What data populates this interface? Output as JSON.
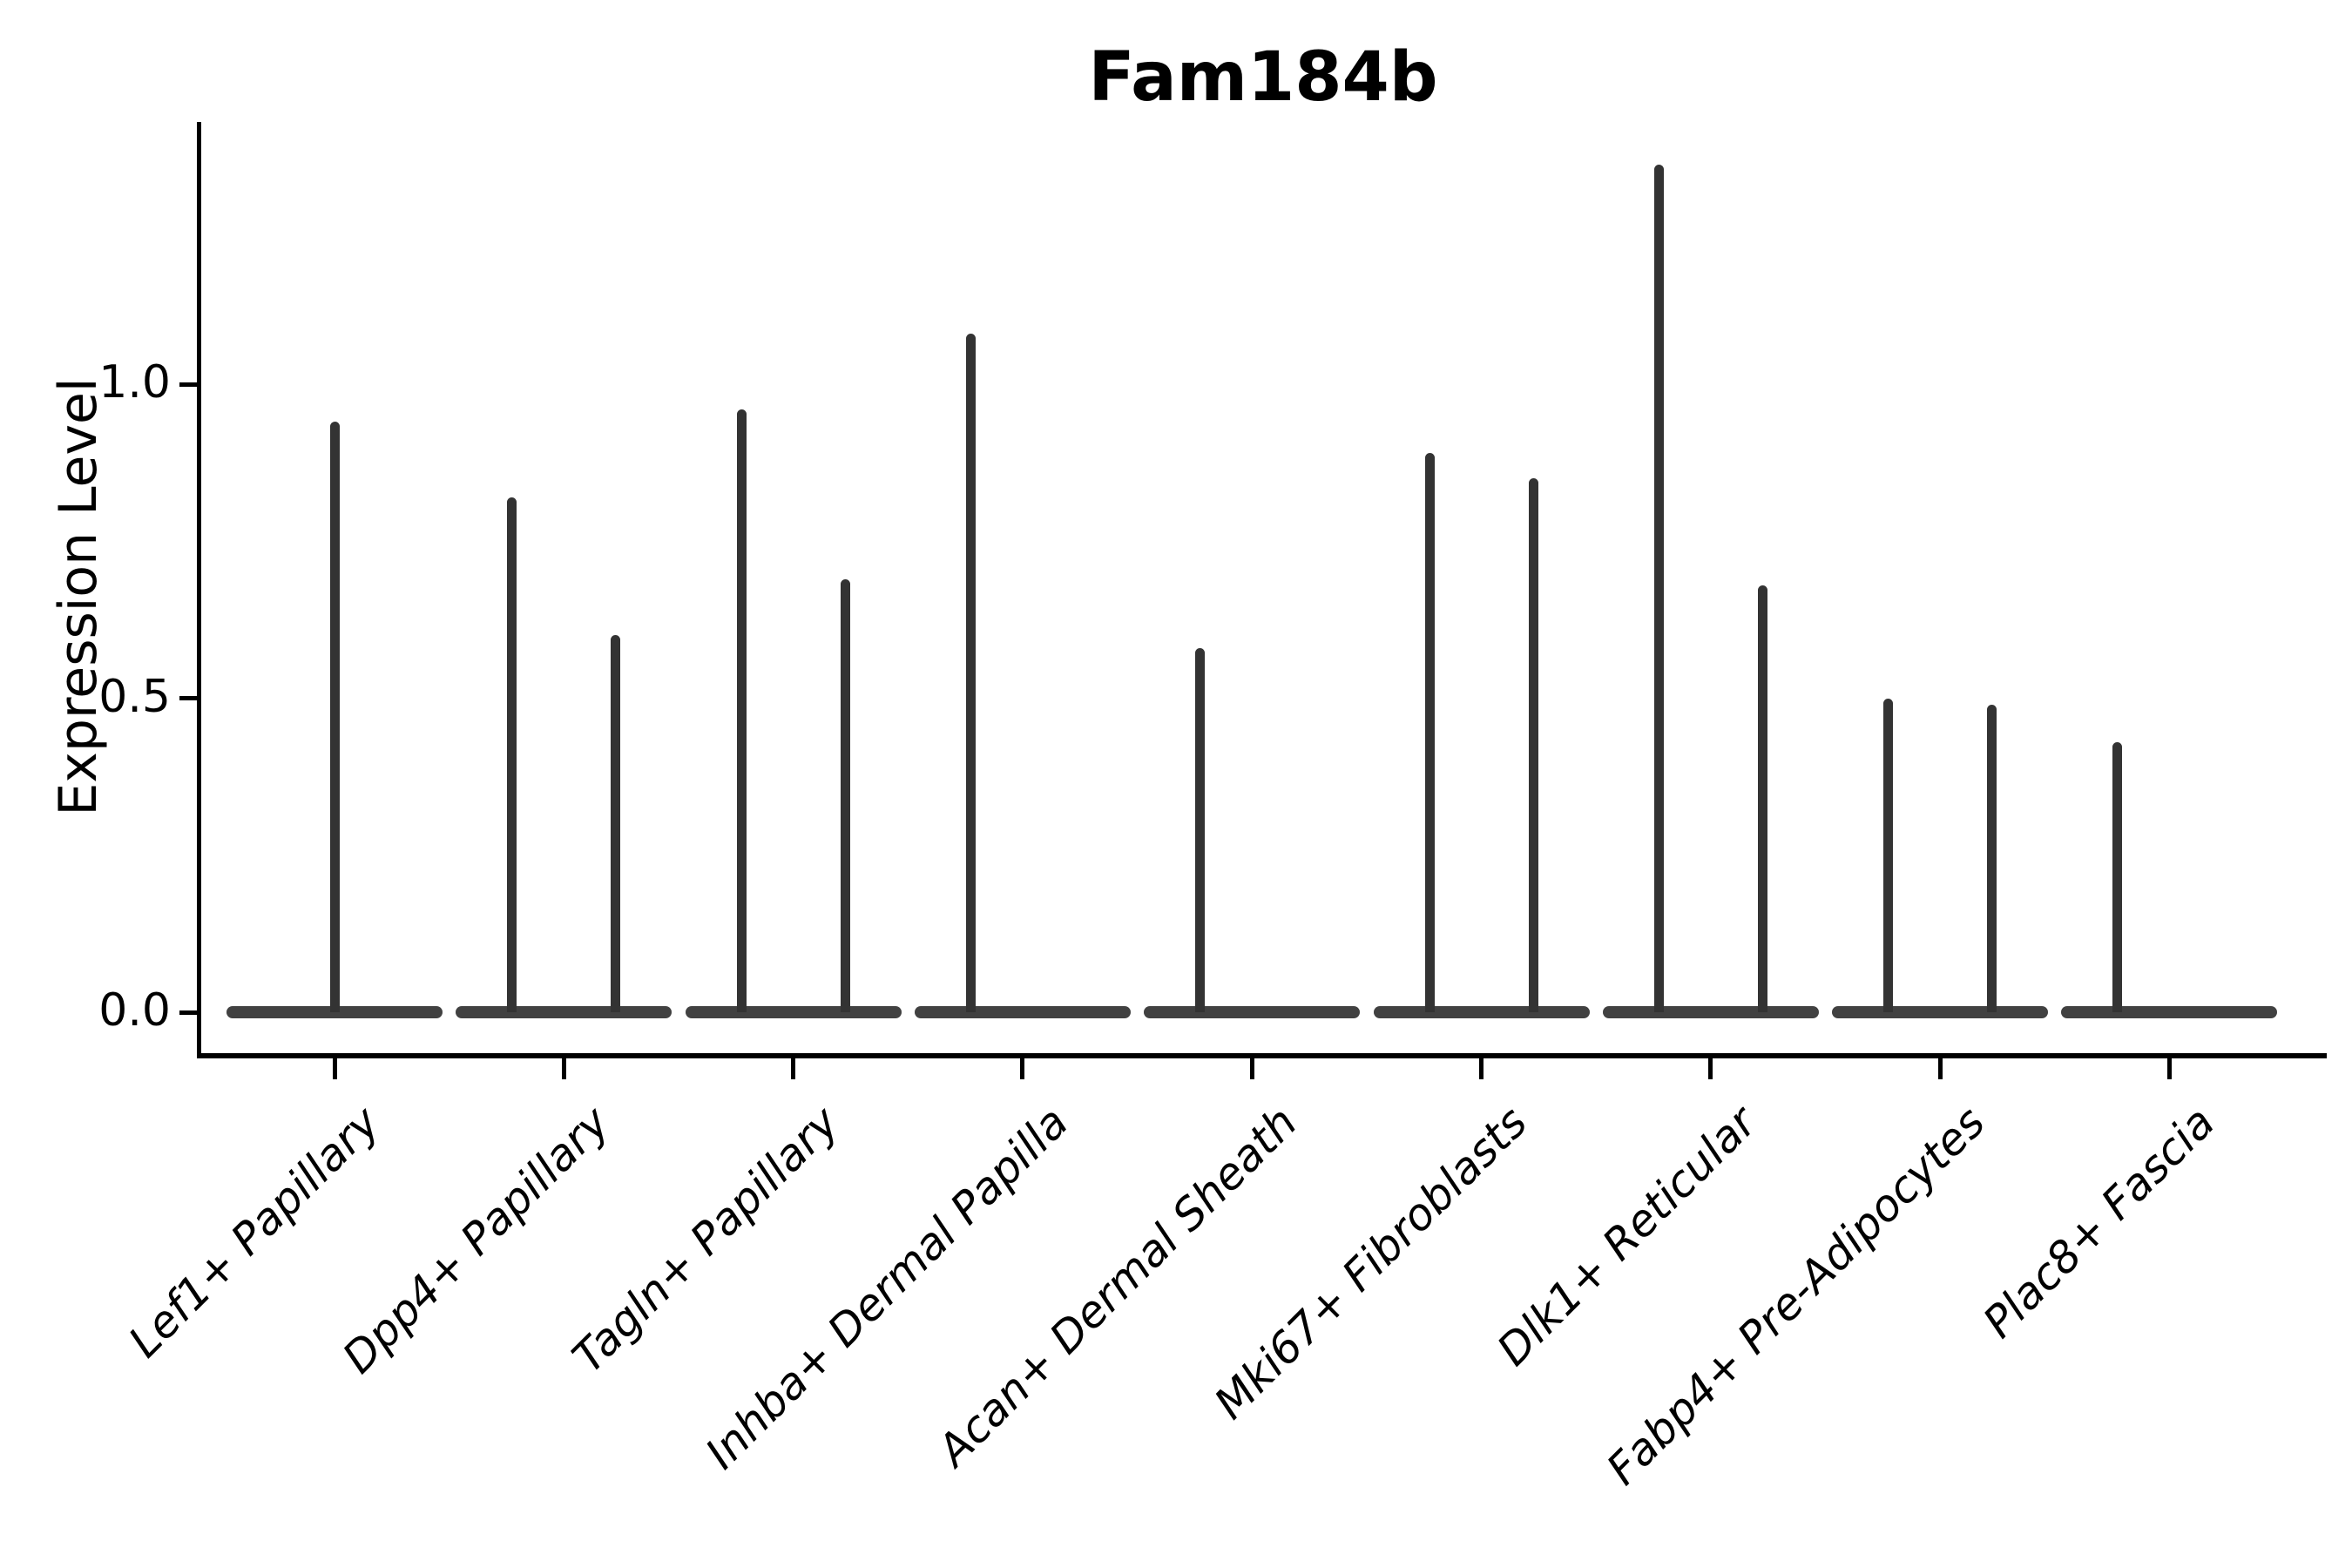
{
  "title": "Fam184b",
  "chart_data": {
    "type": "violin",
    "title": "Fam184b",
    "xlabel": "",
    "ylabel": "Expression Level",
    "ylim": [
      -0.07,
      1.42
    ],
    "grid": false,
    "legend": "none",
    "yticks": [
      {
        "value": 0.0,
        "label": "0.0"
      },
      {
        "value": 0.5,
        "label": "0.5"
      },
      {
        "value": 1.0,
        "label": "1.0"
      }
    ],
    "categories": [
      "Lef1+ Papillary",
      "Dpp4+ Papillary",
      "Tagln+ Papillary",
      "Inhba+ Dermal Papilla",
      "Acan+ Dermal Sheath",
      "Mki67+ Fibroblasts",
      "Dlk1+ Reticular",
      "Fabp4+ Pre-Adipocytes",
      "Plac8+ Fascia"
    ],
    "violins": [
      {
        "category": "Lef1+ Papillary",
        "body_at_zero": true,
        "spikes": [
          {
            "position": "center",
            "max_expression": 0.94
          }
        ]
      },
      {
        "category": "Dpp4+ Papillary",
        "body_at_zero": true,
        "spikes": [
          {
            "position": "left",
            "max_expression": 0.82
          },
          {
            "position": "right",
            "max_expression": 0.6
          }
        ]
      },
      {
        "category": "Tagln+ Papillary",
        "body_at_zero": true,
        "spikes": [
          {
            "position": "left",
            "max_expression": 0.96
          },
          {
            "position": "right",
            "max_expression": 0.69
          }
        ]
      },
      {
        "category": "Inhba+ Dermal Papilla",
        "body_at_zero": true,
        "spikes": [
          {
            "position": "left",
            "max_expression": 1.08
          }
        ]
      },
      {
        "category": "Acan+ Dermal Sheath",
        "body_at_zero": true,
        "spikes": [
          {
            "position": "left",
            "max_expression": 0.58
          }
        ]
      },
      {
        "category": "Mki67+ Fibroblasts",
        "body_at_zero": true,
        "spikes": [
          {
            "position": "left",
            "max_expression": 0.89
          },
          {
            "position": "right",
            "max_expression": 0.85
          }
        ]
      },
      {
        "category": "Dlk1+ Reticular",
        "body_at_zero": true,
        "spikes": [
          {
            "position": "left",
            "max_expression": 1.35
          },
          {
            "position": "right",
            "max_expression": 0.68
          }
        ]
      },
      {
        "category": "Fabp4+ Pre-Adipocytes",
        "body_at_zero": true,
        "spikes": [
          {
            "position": "left",
            "max_expression": 0.5
          },
          {
            "position": "right",
            "max_expression": 0.49
          }
        ]
      },
      {
        "category": "Plac8+ Fascia",
        "body_at_zero": true,
        "spikes": [
          {
            "position": "left",
            "max_expression": 0.43
          }
        ]
      }
    ]
  }
}
